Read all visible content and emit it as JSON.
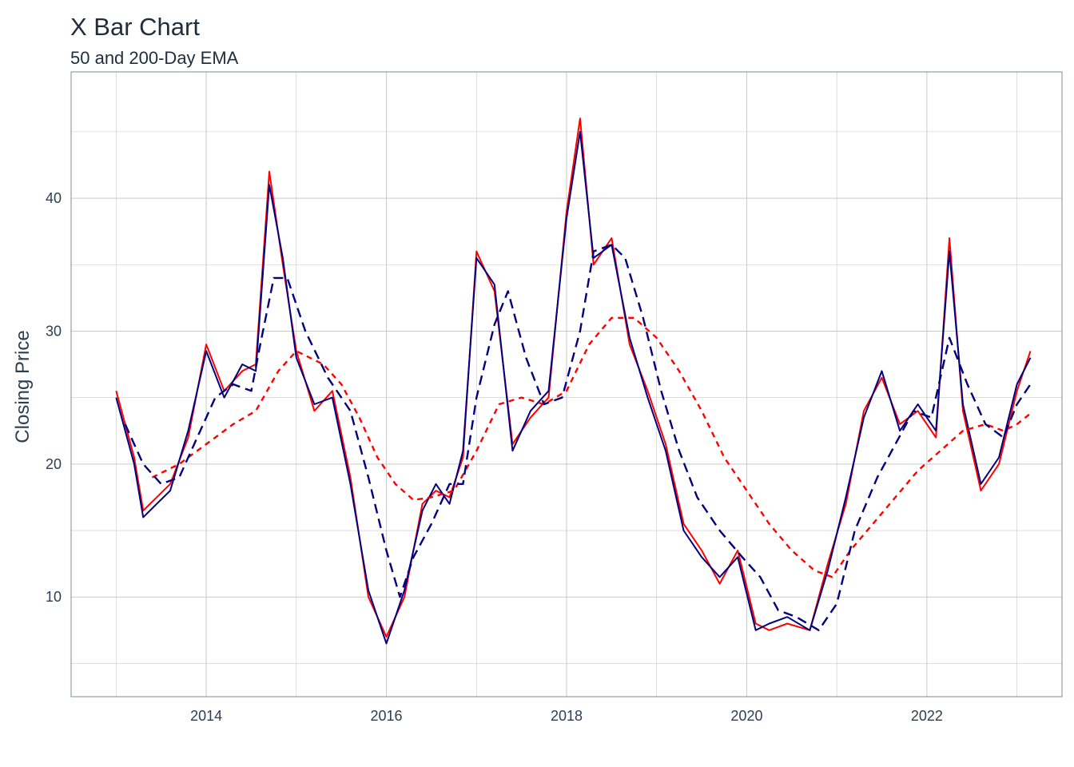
{
  "chart_data": {
    "type": "line",
    "title": "X Bar Chart",
    "subtitle": "50 and 200-Day EMA",
    "xlabel": "",
    "ylabel": "Closing Price",
    "xlim": [
      2012.5,
      2023.5
    ],
    "ylim": [
      2.5,
      49.5
    ],
    "x_ticks": [
      2014,
      2016,
      2018,
      2020,
      2022
    ],
    "x_tick_labels": [
      "2014",
      "2016",
      "2018",
      "2020",
      "2022"
    ],
    "y_ticks": [
      10,
      20,
      30,
      40
    ],
    "y_tick_labels": [
      "10",
      "20",
      "30",
      "40"
    ],
    "grid": true,
    "legend": "none",
    "series": [
      {
        "role": "price_close",
        "color": "#ff0000",
        "style": "solid",
        "x": [
          2013.0,
          2013.2,
          2013.3,
          2013.45,
          2013.6,
          2013.8,
          2014.0,
          2014.2,
          2014.4,
          2014.55,
          2014.7,
          2014.85,
          2015.0,
          2015.2,
          2015.4,
          2015.6,
          2015.8,
          2016.0,
          2016.2,
          2016.4,
          2016.55,
          2016.7,
          2016.85,
          2017.0,
          2017.2,
          2017.4,
          2017.6,
          2017.8,
          2018.0,
          2018.15,
          2018.3,
          2018.5,
          2018.7,
          2018.9,
          2019.1,
          2019.3,
          2019.5,
          2019.7,
          2019.9,
          2020.1,
          2020.25,
          2020.45,
          2020.7,
          2020.9,
          2021.1,
          2021.3,
          2021.5,
          2021.7,
          2021.9,
          2022.1,
          2022.25,
          2022.4,
          2022.6,
          2022.8,
          2023.0,
          2023.15
        ],
        "y": [
          25.5,
          20.5,
          16.5,
          17.5,
          18.5,
          22,
          29,
          25.5,
          27,
          27.5,
          42,
          35,
          28.5,
          24,
          25.5,
          19,
          10,
          7,
          10,
          17,
          18,
          17.5,
          20.5,
          36,
          33,
          21.5,
          23.5,
          25,
          39,
          46,
          35,
          37,
          29,
          25.5,
          21.5,
          15.5,
          13.5,
          11,
          13.5,
          8,
          7.5,
          8,
          7.5,
          12.5,
          17,
          24,
          26.5,
          23,
          24,
          22,
          37,
          24,
          18,
          20,
          25.5,
          28.5
        ]
      },
      {
        "role": "price_bars",
        "color": "#000080",
        "style": "solid",
        "x": [
          2013.0,
          2013.2,
          2013.3,
          2013.45,
          2013.6,
          2013.8,
          2014.0,
          2014.2,
          2014.4,
          2014.55,
          2014.7,
          2014.85,
          2015.0,
          2015.2,
          2015.4,
          2015.6,
          2015.8,
          2016.0,
          2016.2,
          2016.4,
          2016.55,
          2016.7,
          2016.85,
          2017.0,
          2017.2,
          2017.4,
          2017.6,
          2017.8,
          2018.0,
          2018.15,
          2018.3,
          2018.5,
          2018.7,
          2018.9,
          2019.1,
          2019.3,
          2019.5,
          2019.7,
          2019.9,
          2020.1,
          2020.25,
          2020.45,
          2020.7,
          2020.9,
          2021.1,
          2021.3,
          2021.5,
          2021.7,
          2021.9,
          2022.1,
          2022.25,
          2022.4,
          2022.6,
          2022.8,
          2023.0,
          2023.15
        ],
        "y": [
          25,
          20,
          16,
          17,
          18,
          22.5,
          28.5,
          25,
          27.5,
          27,
          41,
          35.5,
          28,
          24.5,
          25,
          18.5,
          10.5,
          6.5,
          10.5,
          16.5,
          18.5,
          17,
          21,
          35.5,
          33.5,
          21,
          24,
          25.5,
          38.5,
          45,
          35.5,
          36.5,
          29.5,
          25,
          21,
          15,
          13,
          11.5,
          13,
          7.5,
          8,
          8.5,
          7.5,
          12,
          17.5,
          23.5,
          27,
          22.5,
          24.5,
          22.5,
          36,
          24.5,
          18.5,
          20.5,
          26,
          28
        ]
      },
      {
        "role": "ema_50",
        "color": "#000080",
        "style": "dashed",
        "x": [
          2013.1,
          2013.3,
          2013.5,
          2013.7,
          2013.9,
          2014.1,
          2014.3,
          2014.5,
          2014.6,
          2014.75,
          2014.9,
          2015.1,
          2015.35,
          2015.6,
          2015.8,
          2016.0,
          2016.15,
          2016.3,
          2016.5,
          2016.7,
          2016.85,
          2017.0,
          2017.2,
          2017.35,
          2017.55,
          2017.75,
          2017.95,
          2018.15,
          2018.3,
          2018.5,
          2018.65,
          2018.85,
          2019.05,
          2019.25,
          2019.45,
          2019.7,
          2019.95,
          2020.15,
          2020.35,
          2020.55,
          2020.8,
          2021.0,
          2021.2,
          2021.45,
          2021.65,
          2021.85,
          2022.05,
          2022.25,
          2022.45,
          2022.65,
          2022.85,
          2023.0,
          2023.15
        ],
        "y": [
          23,
          20,
          18.5,
          19,
          22,
          25,
          26,
          25.5,
          29,
          34,
          34,
          30,
          26.5,
          24,
          19,
          13.5,
          10,
          13,
          15.5,
          18.5,
          18.5,
          25,
          30.5,
          33,
          28,
          24.5,
          25,
          30,
          36,
          36.5,
          35.5,
          31,
          25.5,
          21,
          17.5,
          15,
          13,
          11.5,
          9,
          8.5,
          7.5,
          9.5,
          15,
          19,
          21.5,
          24,
          23.5,
          29.5,
          26,
          23,
          22,
          24.5,
          26
        ]
      },
      {
        "role": "ema_200",
        "color": "#ff0000",
        "style": "dashed",
        "x": [
          2013.4,
          2013.7,
          2014.0,
          2014.3,
          2014.55,
          2014.8,
          2015.0,
          2015.3,
          2015.5,
          2015.7,
          2015.9,
          2016.1,
          2016.3,
          2016.5,
          2016.75,
          2017.0,
          2017.25,
          2017.5,
          2017.75,
          2018.0,
          2018.25,
          2018.5,
          2018.75,
          2019.0,
          2019.25,
          2019.5,
          2019.75,
          2020.0,
          2020.25,
          2020.5,
          2020.75,
          2020.95,
          2021.15,
          2021.4,
          2021.65,
          2021.9,
          2022.15,
          2022.4,
          2022.65,
          2022.85,
          2023.0,
          2023.15
        ],
        "y": [
          19,
          20,
          21.5,
          23,
          24,
          27,
          28.5,
          27.5,
          26,
          23.5,
          20.5,
          18.5,
          17.3,
          17.5,
          18,
          21,
          24.5,
          25,
          24.5,
          25.5,
          29,
          31,
          31,
          29.5,
          27,
          24,
          20.5,
          18,
          15.5,
          13.5,
          12,
          11.5,
          13.5,
          15.5,
          17.5,
          19.5,
          21,
          22.5,
          23,
          22.5,
          23,
          23.8
        ]
      }
    ]
  }
}
